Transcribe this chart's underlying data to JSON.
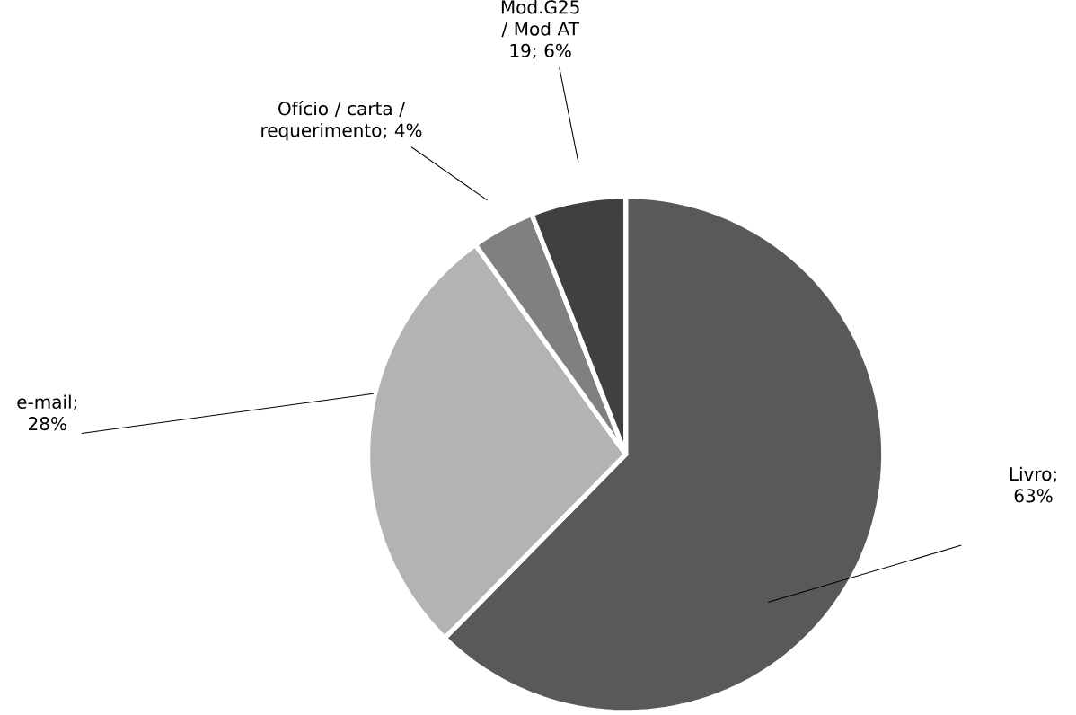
{
  "chart_data": {
    "type": "pie",
    "categories": [
      "Livro",
      "e-mail",
      "Ofício / carta / requerimento",
      "Mod.G25 / Mod AT 19"
    ],
    "values": [
      63,
      28,
      4,
      6
    ],
    "value_labels": [
      "; 63%",
      "; 28%",
      "; 4%",
      "; 6%"
    ],
    "colors": [
      "#595959",
      "#b3b3b3",
      "#808080",
      "#404040"
    ]
  }
}
